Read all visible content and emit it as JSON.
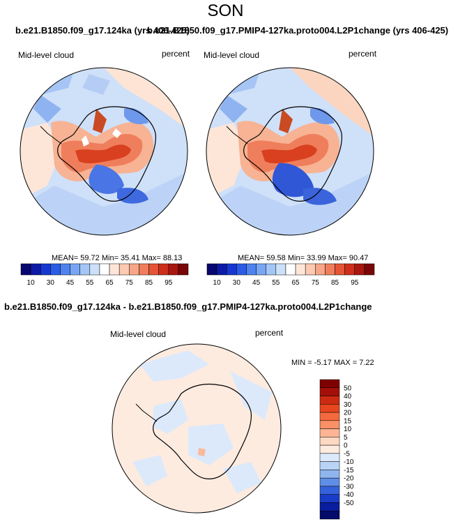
{
  "figure": {
    "season": "SON",
    "case_a_title": "b.e21.B1850.f09_g17.124ka (yrs 406-425)",
    "case_b_title": "b.e21.B1850.f09_g17.PMIP4-127ka.proto004.L2P1change (yrs 406-425)",
    "diff_title": "b.e21.B1850.f09_g17.124ka - b.e21.B1850.f09_g17.PMIP4-127ka.proto004.L2P1change"
  },
  "chart_data": [
    {
      "type": "heatmap",
      "projection": "polar-stereographic-south",
      "variable": "Mid-level cloud",
      "units": "percent",
      "stats_text": "MEAN=  59.72  Min=  35.41  Max=  88.13",
      "mean": 59.72,
      "min": 35.41,
      "max": 88.13,
      "colorbar": {
        "orientation": "horizontal",
        "tick_labels": [
          "10",
          "30",
          "45",
          "55",
          "65",
          "75",
          "85",
          "95"
        ],
        "colors": [
          "#08076f",
          "#0d1aa6",
          "#1638d0",
          "#2a5ce6",
          "#4d83ef",
          "#78a6f3",
          "#a4c6f6",
          "#cde0fa",
          "#ffffff",
          "#fde6d8",
          "#fbcab1",
          "#f6a787",
          "#f07e5c",
          "#e55435",
          "#cd2f1b",
          "#a81710",
          "#7a0708"
        ]
      }
    },
    {
      "type": "heatmap",
      "projection": "polar-stereographic-south",
      "variable": "Mid-level cloud",
      "units": "percent",
      "stats_text": "MEAN=  59.58  Min=  33.99  Max=  90.47",
      "mean": 59.58,
      "min": 33.99,
      "max": 90.47,
      "colorbar": {
        "orientation": "horizontal",
        "tick_labels": [
          "10",
          "30",
          "45",
          "55",
          "65",
          "75",
          "85",
          "95"
        ],
        "colors": [
          "#08076f",
          "#0d1aa6",
          "#1638d0",
          "#2a5ce6",
          "#4d83ef",
          "#78a6f3",
          "#a4c6f6",
          "#cde0fa",
          "#ffffff",
          "#fde6d8",
          "#fbcab1",
          "#f6a787",
          "#f07e5c",
          "#e55435",
          "#cd2f1b",
          "#a81710",
          "#7a0708"
        ]
      }
    },
    {
      "type": "heatmap",
      "projection": "polar-stereographic-south",
      "variable": "Mid-level cloud",
      "units": "percent",
      "stats_text": "MIN =  -5.17 MAX =  7.22",
      "min": -5.17,
      "max": 7.22,
      "colorbar": {
        "orientation": "vertical",
        "tick_labels": [
          "50",
          "40",
          "30",
          "20",
          "15",
          "10",
          "5",
          "0",
          "-5",
          "-10",
          "-15",
          "-20",
          "-30",
          "-40",
          "-50"
        ],
        "colors": [
          "#7f0000",
          "#a50f0a",
          "#cc2a12",
          "#e8461e",
          "#f46a3e",
          "#f99066",
          "#fcb494",
          "#fdd8c3",
          "#fdebe0",
          "#dce9fb",
          "#b9d3f6",
          "#8fb5ef",
          "#5f8ee6",
          "#3562db",
          "#1b3cc6",
          "#0a1d9e",
          "#040b6a"
        ]
      }
    }
  ]
}
